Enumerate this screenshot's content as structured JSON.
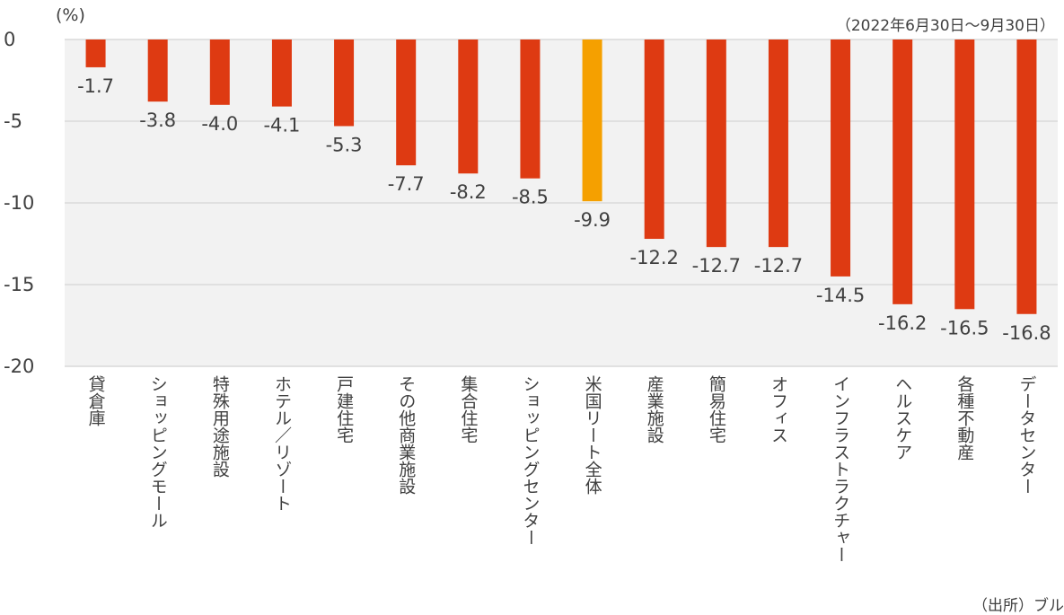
{
  "chart_data": {
    "type": "bar",
    "unit_label": "(%)",
    "period_note": "（2022年6月30日～9月30日）",
    "source_note": "（出所）ブル",
    "ylim": [
      -20,
      0
    ],
    "yticks": [
      0,
      -5,
      -10,
      -15,
      -20
    ],
    "grid": true,
    "categories": [
      "貸倉庫",
      "ショッピングモール",
      "特殊用途施設",
      "ホテル／リゾート",
      "戸建住宅",
      "その他商業施設",
      "集合住宅",
      "ショッピングセンター",
      "米国リート全体",
      "産業施設",
      "簡易住宅",
      "オフィス",
      "インフラストラクチャー",
      "ヘルスケア",
      "各種不動産",
      "データセンター"
    ],
    "values": [
      -1.7,
      -3.8,
      -4.0,
      -4.1,
      -5.3,
      -7.7,
      -8.2,
      -8.5,
      -9.9,
      -12.2,
      -12.7,
      -12.7,
      -14.5,
      -16.2,
      -16.5,
      -16.8
    ],
    "value_labels": [
      "-1.7",
      "-3.8",
      "-4.0",
      "-4.1",
      "-5.3",
      "-7.7",
      "-8.2",
      "-8.5",
      "-9.9",
      "-12.2",
      "-12.7",
      "-12.7",
      "-14.5",
      "-16.2",
      "-16.5",
      "-16.8"
    ],
    "highlight_category": "米国リート全体",
    "colors": {
      "bar": "#de3a12",
      "highlight": "#f5a000",
      "plot_bg": "#f2f2f2",
      "grid": "#d9d9d9",
      "text": "#404040"
    }
  }
}
